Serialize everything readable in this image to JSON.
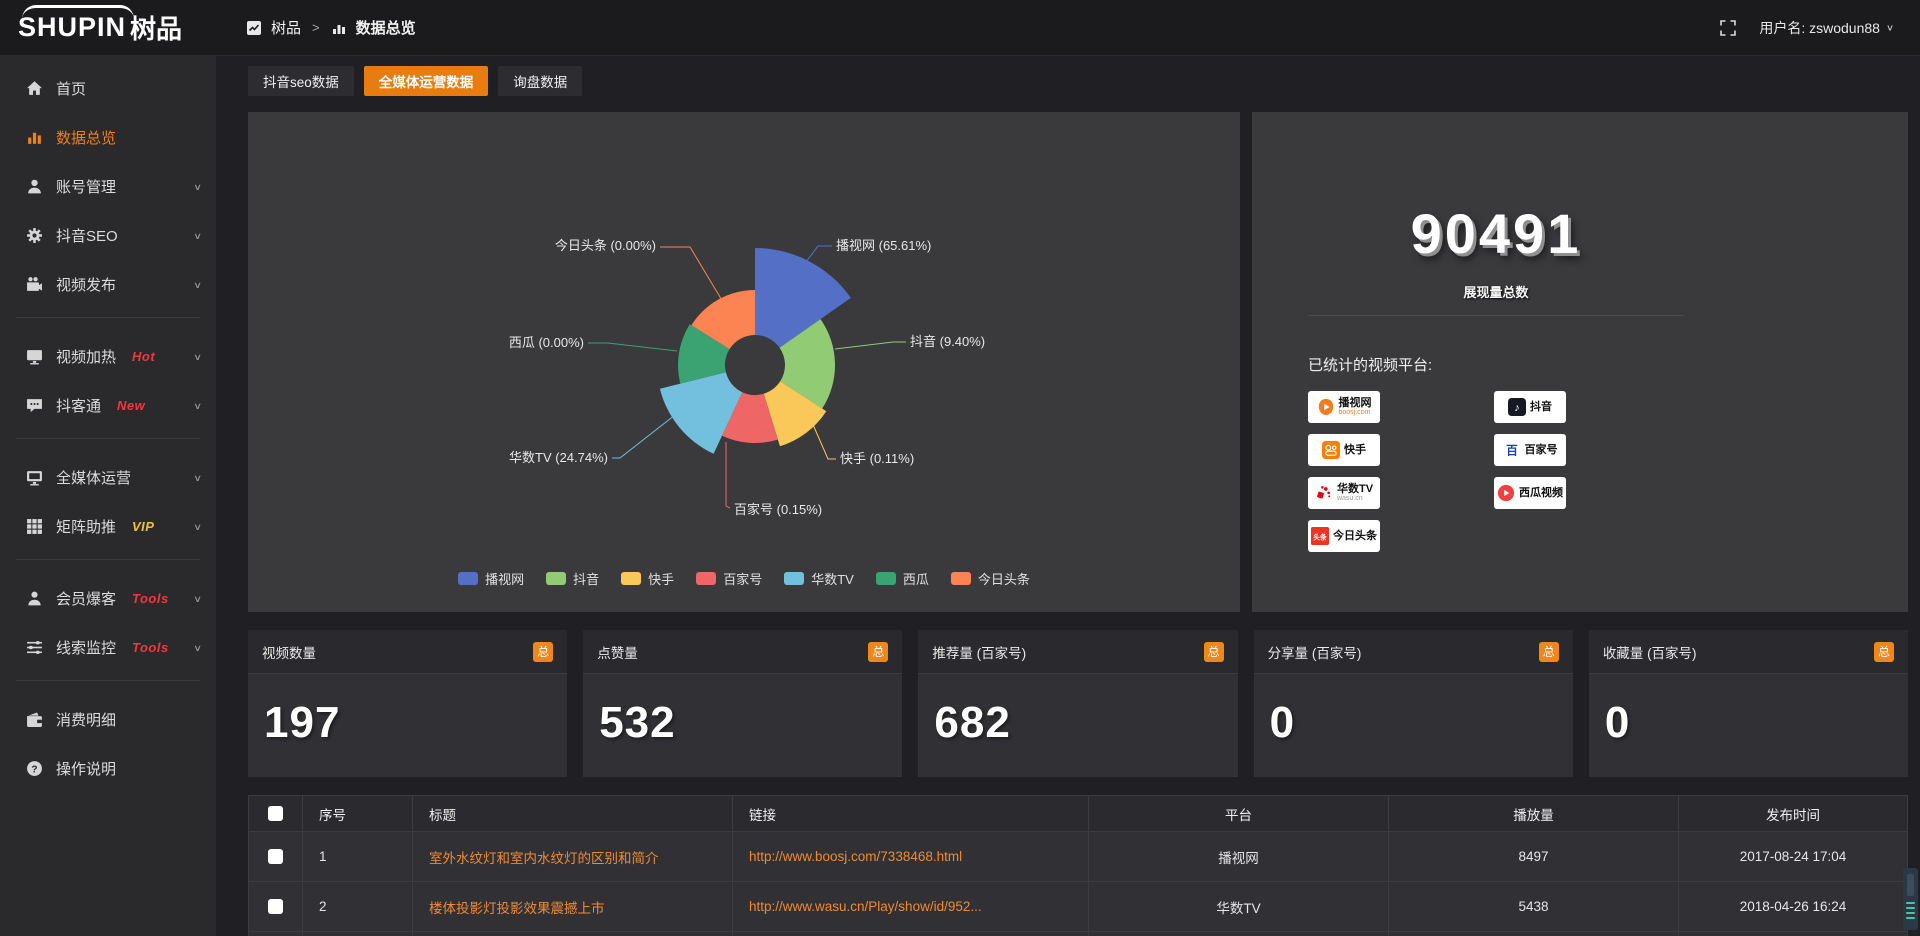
{
  "topbar": {
    "logo_main": "SHUPIN",
    "logo_cn": "树品",
    "breadcrumb": {
      "root": "树品",
      "separator": ">",
      "current": "数据总览"
    },
    "username": "用户名: zswodun88",
    "caret": "∨"
  },
  "tabs": [
    {
      "label": "抖音seo数据",
      "active": false
    },
    {
      "label": "全媒体运营数据",
      "active": true
    },
    {
      "label": "询盘数据",
      "active": false
    }
  ],
  "sidebar": {
    "groups": [
      {
        "items": [
          {
            "label": "首页",
            "icon": "home-icon"
          },
          {
            "label": "数据总览",
            "icon": "bar-chart-icon",
            "active": true
          },
          {
            "label": "账号管理",
            "icon": "user-icon",
            "chevron": true
          },
          {
            "label": "抖音SEO",
            "icon": "gear-icon",
            "chevron": true
          },
          {
            "label": "视频发布",
            "icon": "video-camera-icon",
            "chevron": true
          }
        ]
      },
      {
        "items": [
          {
            "label": "视频加热",
            "icon": "screen-icon",
            "badge": "Hot",
            "badge_color": "#f0383d",
            "chevron": true
          },
          {
            "label": "抖客通",
            "icon": "chat-icon",
            "badge": "New",
            "badge_color": "#f0383d",
            "chevron": true
          }
        ]
      },
      {
        "items": [
          {
            "label": "全媒体运营",
            "icon": "monitor-icon",
            "chevron": true
          },
          {
            "label": "矩阵助推",
            "icon": "grid-icon",
            "badge": "VIP",
            "badge_color": "#f3c034",
            "chevron": true
          }
        ]
      },
      {
        "items": [
          {
            "label": "会员爆客",
            "icon": "person-icon",
            "badge": "Tools",
            "badge_color": "#f0383d",
            "chevron": true
          },
          {
            "label": "线索监控",
            "icon": "sliders-icon",
            "badge": "Tools",
            "badge_color": "#f0383d",
            "chevron": true
          }
        ]
      },
      {
        "items": [
          {
            "label": "消费明细",
            "icon": "wallet-icon"
          },
          {
            "label": "操作说明",
            "icon": "question-icon"
          }
        ]
      }
    ]
  },
  "chart_data": {
    "type": "pie",
    "variant": "nightingale-rose",
    "unit": "percent",
    "slices": [
      {
        "name": "播视网",
        "value": 65.61,
        "label": "播视网 (65.61%)",
        "color": "#5470c6"
      },
      {
        "name": "抖音",
        "value": 9.4,
        "label": "抖音 (9.40%)",
        "color": "#91cc75"
      },
      {
        "name": "快手",
        "value": 0.11,
        "label": "快手 (0.11%)",
        "color": "#fac858"
      },
      {
        "name": "百家号",
        "value": 0.15,
        "label": "百家号 (0.15%)",
        "color": "#ee6666"
      },
      {
        "name": "华数TV",
        "value": 24.74,
        "label": "华数TV (24.74%)",
        "color": "#73c0de"
      },
      {
        "name": "西瓜",
        "value": 0.0,
        "label": "西瓜 (0.00%)",
        "color": "#3ba272"
      },
      {
        "name": "今日头条",
        "value": 0.0,
        "label": "今日头条 (0.00%)",
        "color": "#fc8452"
      }
    ],
    "legend": {
      "position": "bottom",
      "items": [
        "播视网",
        "抖音",
        "快手",
        "百家号",
        "华数TV",
        "西瓜",
        "今日头条"
      ]
    }
  },
  "exposure": {
    "total": "90491",
    "label": "展现量总数",
    "platforms_title": "已统计的视频平台:",
    "platforms": [
      {
        "name": "播视网",
        "sub": "boosj.com",
        "logo": "boosj-logo"
      },
      {
        "name": "抖音",
        "logo": "douyin-logo"
      },
      {
        "name": "快手",
        "logo": "kuaishou-logo"
      },
      {
        "name": "百家号",
        "logo": "baijiahao-logo"
      },
      {
        "name": "华数TV",
        "sub": "wasu.cn",
        "logo": "wasu-logo"
      },
      {
        "name": "西瓜视频",
        "logo": "xigua-logo"
      },
      {
        "name": "今日头条",
        "logo": "toutiao-logo"
      }
    ]
  },
  "stats": [
    {
      "label": "视频数量",
      "badge": "总",
      "value": "197"
    },
    {
      "label": "点赞量",
      "badge": "总",
      "value": "532"
    },
    {
      "label": "推荐量 (百家号)",
      "badge": "总",
      "value": "682"
    },
    {
      "label": "分享量 (百家号)",
      "badge": "总",
      "value": "0"
    },
    {
      "label": "收藏量 (百家号)",
      "badge": "总",
      "value": "0"
    }
  ],
  "table": {
    "headers": [
      "序号",
      "标题",
      "链接",
      "平台",
      "播放量",
      "发布时间"
    ],
    "rows": [
      {
        "no": "1",
        "title": "室外水纹灯和室内水纹灯的区别和简介",
        "link": "http://www.boosj.com/7338468.html",
        "platform": "播视网",
        "views": "8497",
        "time": "2017-08-24 17:04"
      },
      {
        "no": "2",
        "title": "楼体投影灯投影效果震撼上市",
        "link": "http://www.wasu.cn/Play/show/id/952...",
        "platform": "华数TV",
        "views": "5438",
        "time": "2018-04-26 16:24"
      }
    ]
  },
  "colors": {
    "accent": "#e87c11",
    "badge": "#f08718",
    "link": "#ef8a33",
    "hot": "#f0383d",
    "vip": "#f3c034"
  }
}
